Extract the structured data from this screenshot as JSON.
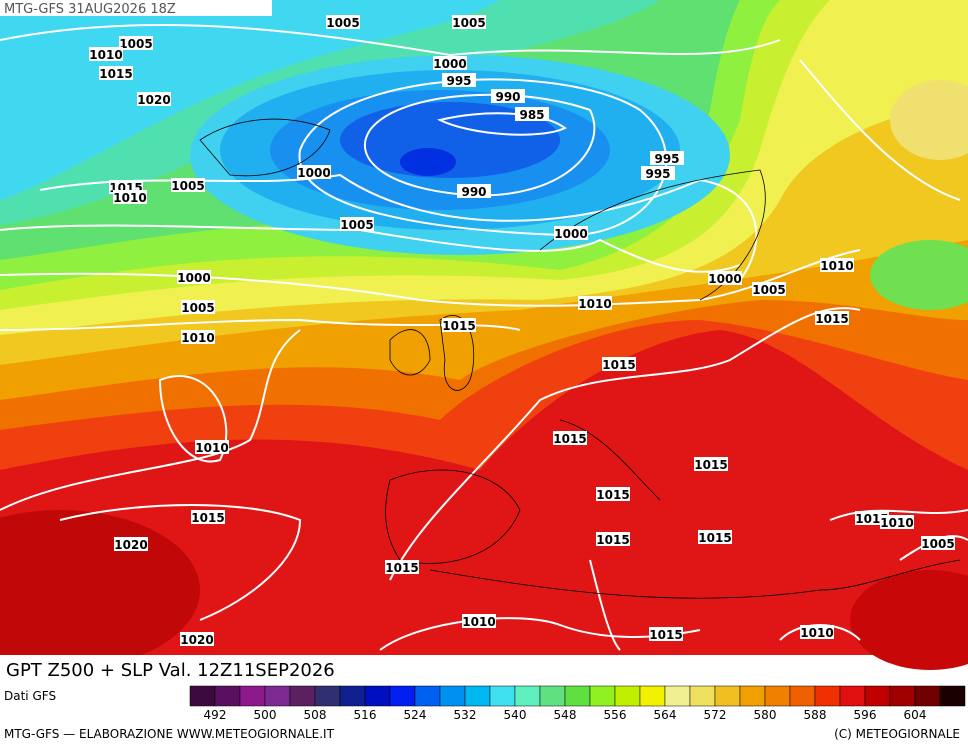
{
  "header": {
    "run": "MTG-GFS 31AUG2026 18Z"
  },
  "map": {
    "title": "GPT Z500 + SLP Val. 12Z11SEP2026",
    "isobar_labels": [
      1005,
      1005,
      1005,
      1010,
      1015,
      1000,
      995,
      990,
      985,
      1020,
      1015,
      1010,
      1005,
      1000,
      990,
      995,
      995,
      1005,
      1000,
      1000,
      1010,
      1000,
      1005,
      1010,
      1015,
      1005,
      1010,
      1015,
      1015,
      1015,
      1010,
      1015,
      1015,
      1015,
      1015,
      1010,
      1015,
      1015,
      1005,
      1020,
      1015,
      1010,
      1015,
      1010,
      1020
    ]
  },
  "colorbar": {
    "source": "Dati GFS",
    "colors": [
      "#3d0a3d",
      "#5a1060",
      "#8c1a8c",
      "#7a2a90",
      "#5a2060",
      "#303070",
      "#102090",
      "#0010c0",
      "#0020f0",
      "#0060f0",
      "#0090f0",
      "#00b8f0",
      "#40e0f0",
      "#60f0c0",
      "#60e080",
      "#60e040",
      "#90f020",
      "#c0f000",
      "#f0f000",
      "#f0f090",
      "#f0e060",
      "#f0c020",
      "#f0a000",
      "#f08000",
      "#f06000",
      "#f03000",
      "#e01010",
      "#c00000",
      "#a00000",
      "#700000",
      "#1a0000"
    ],
    "labels": [
      492,
      500,
      508,
      516,
      524,
      532,
      540,
      548,
      556,
      564,
      572,
      580,
      588,
      596,
      604
    ]
  },
  "footer": {
    "left": "MTG-GFS — ELABORAZIONE WWW.METEOGIORNALE.IT",
    "right": "(C) METEOGIORNALE"
  }
}
